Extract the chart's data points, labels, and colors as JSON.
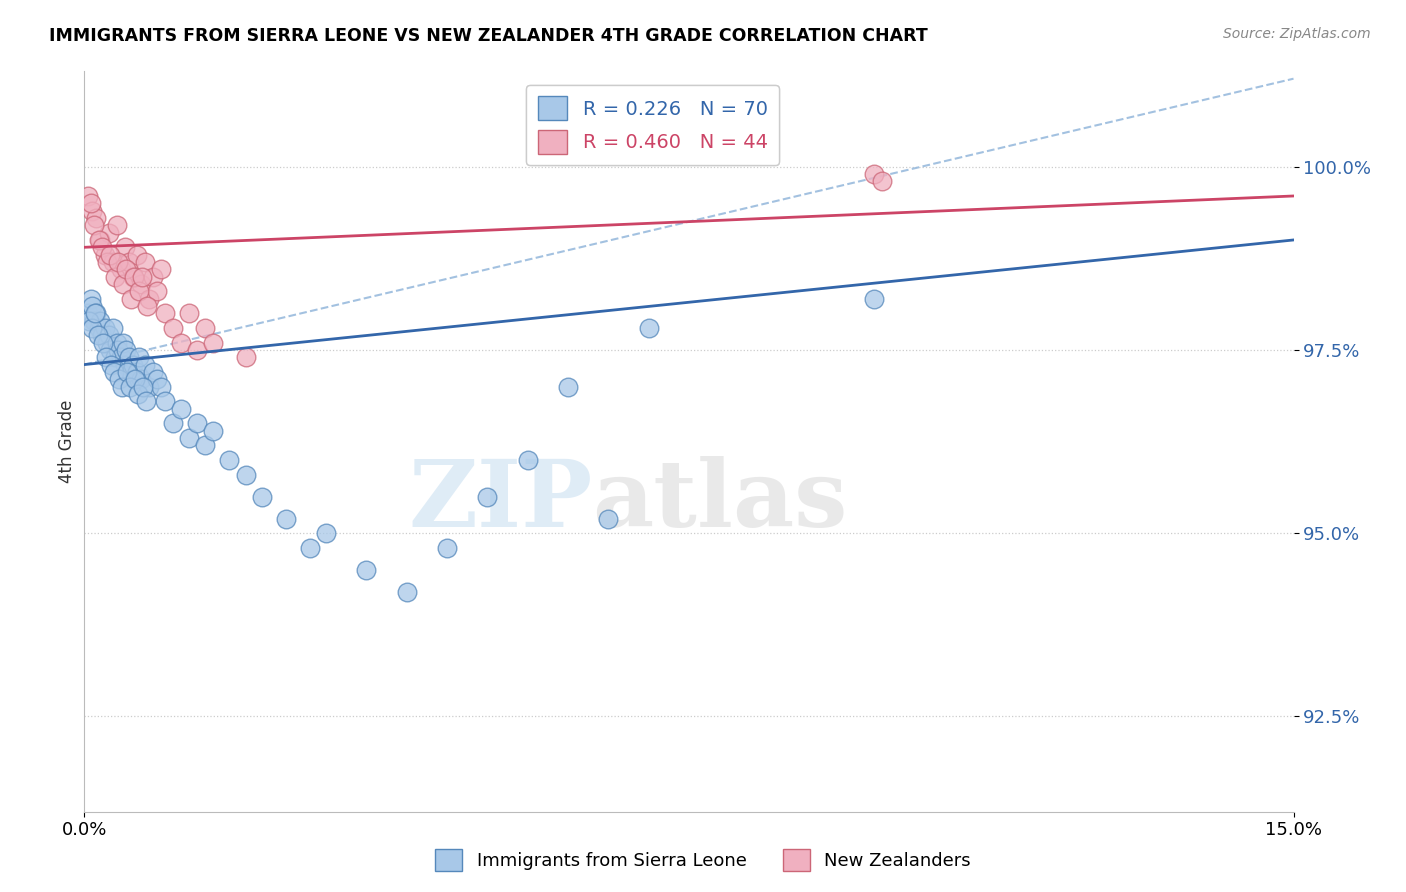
{
  "title": "IMMIGRANTS FROM SIERRA LEONE VS NEW ZEALANDER 4TH GRADE CORRELATION CHART",
  "source": "Source: ZipAtlas.com",
  "ylabel": "4th Grade",
  "yticks": [
    92.5,
    95.0,
    97.5,
    100.0
  ],
  "ytick_labels": [
    "92.5%",
    "95.0%",
    "97.5%",
    "100.0%"
  ],
  "xmin": 0.0,
  "xmax": 15.0,
  "ymin": 91.2,
  "ymax": 101.3,
  "blue_R": 0.226,
  "blue_N": 70,
  "pink_R": 0.46,
  "pink_N": 44,
  "blue_color": "#a8c8e8",
  "pink_color": "#f0b0c0",
  "blue_edge_color": "#5588bb",
  "pink_edge_color": "#cc6677",
  "blue_line_color": "#3366aa",
  "pink_line_color": "#cc4466",
  "dashed_line_color": "#99bbdd",
  "legend_label_blue": "Immigrants from Sierra Leone",
  "legend_label_pink": "New Zealanders",
  "blue_x": [
    0.05,
    0.08,
    0.1,
    0.12,
    0.15,
    0.18,
    0.2,
    0.22,
    0.25,
    0.28,
    0.3,
    0.32,
    0.35,
    0.38,
    0.4,
    0.42,
    0.45,
    0.48,
    0.5,
    0.52,
    0.55,
    0.58,
    0.6,
    0.62,
    0.65,
    0.68,
    0.7,
    0.75,
    0.8,
    0.85,
    0.9,
    0.95,
    1.0,
    1.1,
    1.2,
    1.3,
    1.4,
    1.5,
    1.6,
    1.8,
    2.0,
    2.2,
    2.5,
    2.8,
    3.0,
    3.5,
    4.0,
    4.5,
    5.0,
    5.5,
    6.0,
    6.5,
    7.0,
    0.06,
    0.09,
    0.13,
    0.17,
    0.23,
    0.27,
    0.33,
    0.37,
    0.43,
    0.47,
    0.53,
    0.57,
    0.63,
    0.67,
    0.73,
    0.77,
    9.8
  ],
  "blue_y": [
    98.0,
    98.2,
    98.1,
    97.9,
    98.0,
    97.8,
    97.9,
    97.7,
    97.8,
    97.6,
    97.7,
    97.5,
    97.8,
    97.4,
    97.6,
    97.5,
    97.4,
    97.6,
    97.3,
    97.5,
    97.4,
    97.2,
    97.3,
    97.1,
    97.2,
    97.4,
    97.1,
    97.3,
    97.0,
    97.2,
    97.1,
    97.0,
    96.8,
    96.5,
    96.7,
    96.3,
    96.5,
    96.2,
    96.4,
    96.0,
    95.8,
    95.5,
    95.2,
    94.8,
    95.0,
    94.5,
    94.2,
    94.8,
    95.5,
    96.0,
    97.0,
    95.2,
    97.8,
    97.9,
    97.8,
    98.0,
    97.7,
    97.6,
    97.4,
    97.3,
    97.2,
    97.1,
    97.0,
    97.2,
    97.0,
    97.1,
    96.9,
    97.0,
    96.8,
    98.2
  ],
  "pink_x": [
    0.05,
    0.1,
    0.15,
    0.2,
    0.25,
    0.3,
    0.35,
    0.4,
    0.45,
    0.5,
    0.55,
    0.6,
    0.65,
    0.7,
    0.75,
    0.8,
    0.85,
    0.9,
    0.95,
    1.0,
    1.1,
    1.2,
    1.3,
    1.4,
    1.5,
    0.08,
    0.12,
    0.18,
    0.22,
    0.28,
    0.32,
    0.38,
    0.42,
    0.48,
    0.52,
    0.58,
    0.62,
    0.68,
    0.72,
    0.78,
    1.6,
    2.0,
    9.8,
    9.9
  ],
  "pink_y": [
    99.6,
    99.4,
    99.3,
    99.0,
    98.8,
    99.1,
    98.7,
    99.2,
    98.6,
    98.9,
    98.7,
    98.5,
    98.8,
    98.4,
    98.7,
    98.2,
    98.5,
    98.3,
    98.6,
    98.0,
    97.8,
    97.6,
    98.0,
    97.5,
    97.8,
    99.5,
    99.2,
    99.0,
    98.9,
    98.7,
    98.8,
    98.5,
    98.7,
    98.4,
    98.6,
    98.2,
    98.5,
    98.3,
    98.5,
    98.1,
    97.6,
    97.4,
    99.9,
    99.8
  ],
  "blue_trend_x0": 0.0,
  "blue_trend_x1": 15.0,
  "blue_trend_y0": 97.3,
  "blue_trend_y1": 99.0,
  "pink_trend_x0": 0.0,
  "pink_trend_x1": 15.0,
  "pink_trend_y0": 98.9,
  "pink_trend_y1": 99.6,
  "dashed_x0": 0.0,
  "dashed_x1": 15.0,
  "dashed_y0": 97.3,
  "dashed_y1": 101.2
}
